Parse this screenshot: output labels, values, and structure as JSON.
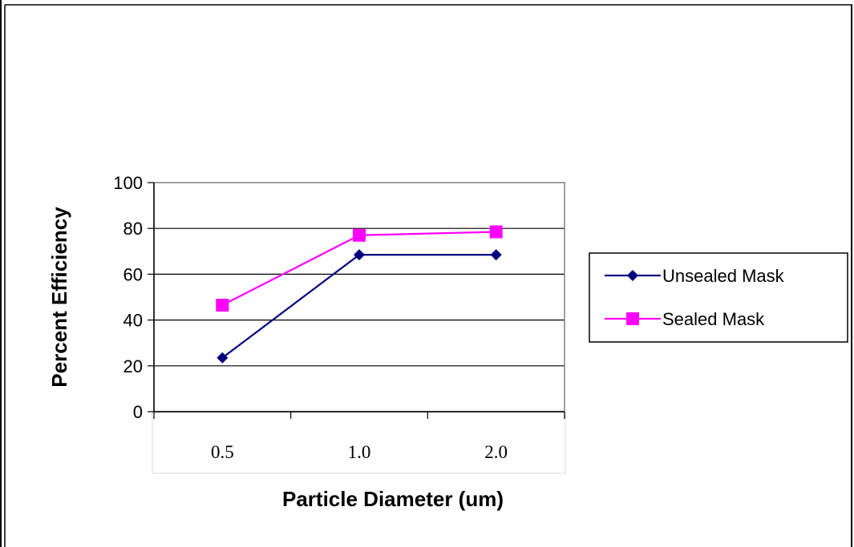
{
  "chart_data": {
    "type": "line",
    "title": "",
    "xlabel": "Particle Diameter (um)",
    "ylabel": "Percent Efficiency",
    "categories": [
      "0.5",
      "1.0",
      "2.0"
    ],
    "ylim": [
      0,
      100
    ],
    "yticks": [
      0,
      20,
      40,
      60,
      80,
      100
    ],
    "grid": true,
    "legend_position": "right",
    "series": [
      {
        "name": "Unsealed Mask",
        "values": [
          23.5,
          68.5,
          68.5
        ],
        "color": "#000080",
        "marker": "diamond"
      },
      {
        "name": "Sealed Mask",
        "values": [
          46.5,
          77,
          78.5
        ],
        "color": "#ff00ff",
        "marker": "square"
      }
    ]
  }
}
